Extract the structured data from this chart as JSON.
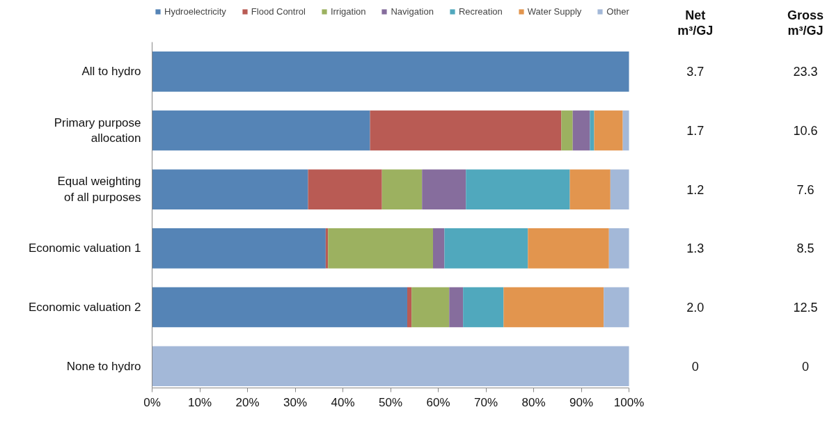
{
  "chart_data": {
    "type": "bar",
    "orientation": "horizontal",
    "stacked": true,
    "categories": [
      "All to hydro",
      "Primary purpose allocation",
      "Equal weighting of all purposes",
      "Economic valuation 1",
      "Economic valuation 2",
      "None to hydro"
    ],
    "series": [
      {
        "name": "Hydroelectricity",
        "color": "#5584b6",
        "values": [
          100,
          45.7,
          32.7,
          36.4,
          53.5,
          0
        ]
      },
      {
        "name": "Flood Control",
        "color": "#b95b54",
        "values": [
          0,
          40.1,
          15.5,
          0.5,
          0.9,
          0
        ]
      },
      {
        "name": "Irrigation",
        "color": "#9cb160",
        "values": [
          0,
          2.4,
          8.4,
          22.0,
          7.9,
          0
        ]
      },
      {
        "name": "Navigation",
        "color": "#866d9d",
        "values": [
          0,
          3.6,
          9.2,
          2.4,
          2.9,
          0
        ]
      },
      {
        "name": "Recreation",
        "color": "#50a8bd",
        "values": [
          0,
          0.9,
          21.8,
          17.5,
          8.5,
          0
        ]
      },
      {
        "name": "Water Supply",
        "color": "#e2954e",
        "values": [
          0,
          6.0,
          8.5,
          17.0,
          21.0,
          0
        ]
      },
      {
        "name": "Other",
        "color": "#a3b8d8",
        "values": [
          0,
          1.3,
          3.9,
          4.2,
          5.3,
          100
        ]
      }
    ],
    "xlim": [
      0,
      100
    ],
    "xticks": [
      {
        "value": 0,
        "label": "0%"
      },
      {
        "value": 10,
        "label": "10%"
      },
      {
        "value": 20,
        "label": "20%"
      },
      {
        "value": 30,
        "label": "30%"
      },
      {
        "value": 40,
        "label": "40%"
      },
      {
        "value": 50,
        "label": "50%"
      },
      {
        "value": 60,
        "label": "60%"
      },
      {
        "value": 70,
        "label": "70%"
      },
      {
        "value": 80,
        "label": "80%"
      },
      {
        "value": 90,
        "label": "90%"
      },
      {
        "value": 100,
        "label": "100%"
      }
    ],
    "grid": false,
    "legend": "top",
    "annotations": [
      "Net m³/GJ",
      "Gross m³/GJ",
      "3.7",
      "23.3",
      "1.7",
      "10.6",
      "1.2",
      "7.6",
      "1.3",
      "8.5",
      "2.0",
      "12.5",
      "0",
      "0"
    ]
  }
}
